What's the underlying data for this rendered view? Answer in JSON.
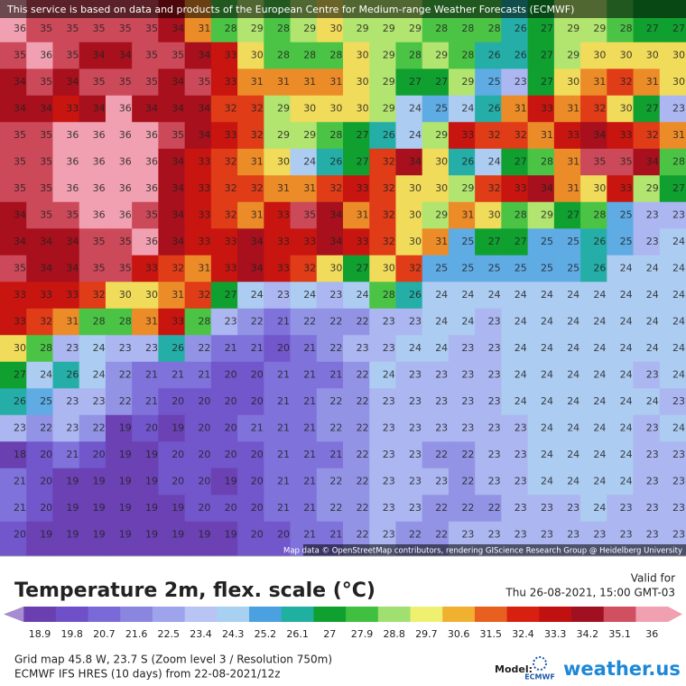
{
  "banner": "This service is based on data and products of the European Centre for Medium-range Weather Forecasts (ECMWF)",
  "map": {
    "attribution": "Map data © OpenStreetMap contributors, rendering GIScience Research Group @ Heidelberg University",
    "grid": [
      [
        36,
        35,
        35,
        35,
        35,
        35,
        34,
        31,
        28,
        29,
        28,
        29,
        30,
        29,
        29,
        29,
        28,
        28,
        28,
        26,
        27,
        29,
        29,
        28,
        27,
        27
      ],
      [
        35,
        36,
        35,
        34,
        34,
        35,
        35,
        34,
        33,
        30,
        28,
        28,
        28,
        30,
        29,
        28,
        29,
        28,
        26,
        26,
        27,
        29,
        30,
        30,
        30,
        30
      ],
      [
        34,
        35,
        34,
        35,
        35,
        35,
        34,
        35,
        33,
        31,
        31,
        31,
        31,
        30,
        29,
        27,
        27,
        29,
        25,
        23,
        27,
        30,
        31,
        32,
        31,
        30
      ],
      [
        34,
        34,
        33,
        34,
        36,
        34,
        34,
        34,
        32,
        32,
        29,
        30,
        30,
        30,
        29,
        24,
        25,
        24,
        26,
        31,
        33,
        31,
        32,
        30,
        27,
        23
      ],
      [
        35,
        35,
        36,
        36,
        36,
        36,
        35,
        34,
        33,
        32,
        29,
        29,
        28,
        27,
        26,
        24,
        29,
        33,
        32,
        32,
        31,
        33,
        34,
        33,
        32,
        31
      ],
      [
        35,
        35,
        36,
        36,
        36,
        36,
        34,
        33,
        32,
        31,
        30,
        24,
        26,
        27,
        32,
        34,
        30,
        26,
        24,
        27,
        28,
        31,
        35,
        35,
        34,
        28
      ],
      [
        35,
        35,
        36,
        36,
        36,
        36,
        34,
        33,
        32,
        32,
        31,
        31,
        32,
        33,
        32,
        30,
        30,
        29,
        32,
        33,
        34,
        31,
        30,
        33,
        29,
        27
      ],
      [
        34,
        35,
        35,
        36,
        36,
        35,
        34,
        33,
        32,
        31,
        33,
        35,
        34,
        31,
        32,
        30,
        29,
        31,
        30,
        28,
        29,
        27,
        28,
        25,
        23,
        23
      ],
      [
        34,
        34,
        34,
        35,
        35,
        36,
        34,
        33,
        33,
        34,
        33,
        33,
        34,
        33,
        32,
        30,
        31,
        25,
        27,
        27,
        25,
        25,
        26,
        25,
        23,
        24
      ],
      [
        35,
        34,
        34,
        35,
        35,
        33,
        32,
        31,
        33,
        34,
        33,
        32,
        30,
        27,
        30,
        32,
        25,
        25,
        25,
        25,
        25,
        25,
        26,
        24,
        24,
        24
      ],
      [
        33,
        33,
        33,
        32,
        30,
        30,
        31,
        32,
        27,
        24,
        23,
        24,
        23,
        24,
        28,
        26,
        24,
        24,
        24,
        24,
        24,
        24,
        24,
        24,
        24,
        24
      ],
      [
        33,
        32,
        31,
        28,
        28,
        31,
        33,
        28,
        23,
        22,
        21,
        22,
        22,
        22,
        23,
        23,
        24,
        24,
        23,
        24,
        24,
        24,
        24,
        24,
        24,
        24
      ],
      [
        30,
        28,
        23,
        24,
        23,
        23,
        26,
        22,
        21,
        21,
        20,
        21,
        22,
        23,
        23,
        24,
        24,
        23,
        23,
        24,
        24,
        24,
        24,
        24,
        24,
        24
      ],
      [
        27,
        24,
        26,
        24,
        22,
        21,
        21,
        21,
        20,
        20,
        21,
        21,
        21,
        22,
        24,
        23,
        23,
        23,
        23,
        24,
        24,
        24,
        24,
        24,
        23,
        24
      ],
      [
        26,
        25,
        23,
        23,
        22,
        21,
        20,
        20,
        20,
        20,
        21,
        21,
        22,
        22,
        23,
        23,
        23,
        23,
        23,
        24,
        24,
        24,
        24,
        24,
        24,
        23
      ],
      [
        23,
        22,
        23,
        22,
        19,
        20,
        19,
        20,
        20,
        21,
        21,
        21,
        22,
        22,
        23,
        23,
        23,
        23,
        23,
        23,
        24,
        24,
        24,
        24,
        23,
        24
      ],
      [
        18,
        20,
        21,
        20,
        19,
        19,
        20,
        20,
        20,
        20,
        21,
        21,
        21,
        22,
        23,
        23,
        22,
        22,
        23,
        23,
        24,
        24,
        24,
        24,
        23,
        23
      ],
      [
        21,
        20,
        19,
        19,
        19,
        19,
        20,
        20,
        19,
        20,
        21,
        21,
        22,
        22,
        23,
        23,
        23,
        22,
        23,
        23,
        24,
        24,
        24,
        24,
        23,
        23
      ],
      [
        21,
        20,
        19,
        19,
        19,
        19,
        19,
        20,
        20,
        20,
        21,
        21,
        22,
        22,
        23,
        23,
        22,
        22,
        22,
        23,
        23,
        23,
        24,
        23,
        23,
        23
      ],
      [
        20,
        19,
        19,
        19,
        19,
        19,
        19,
        19,
        19,
        20,
        20,
        21,
        21,
        22,
        23,
        22,
        22,
        23,
        23,
        23,
        23,
        23,
        23,
        23,
        23,
        23
      ]
    ]
  },
  "legend": {
    "title": "Temperature 2m, flex. scale (°C)",
    "valid_label": "Valid for",
    "valid_time": "Thu 26-08-2021, 15:00 GMT-03",
    "ticks": [
      18.9,
      19.8,
      20.7,
      21.6,
      22.5,
      23.4,
      24.3,
      25.2,
      26.1,
      27,
      27.9,
      28.8,
      29.7,
      30.6,
      31.5,
      32.4,
      33.3,
      34.2,
      35.1,
      36
    ],
    "colors": [
      "#6a3fb0",
      "#7050c8",
      "#7a6ad8",
      "#8a86e0",
      "#9ea4ec",
      "#b8c4f4",
      "#a8d0f0",
      "#4aa0e0",
      "#20b0a0",
      "#10a030",
      "#40c040",
      "#a0e070",
      "#f0f070",
      "#f0b030",
      "#e86020",
      "#d82010",
      "#c01010",
      "#a01020",
      "#d05060",
      "#f0a0b0"
    ]
  },
  "footer": {
    "grid_info": "Grid map 45.8 W, 23.7 S (Zoom level 3 / Resolution 750m)",
    "model_info": "ECMWF IFS HRES (10 days) from 22-08-2021/12z",
    "model_label": "Model:",
    "model_logo": "ECMWF",
    "brand": "weather.us"
  }
}
